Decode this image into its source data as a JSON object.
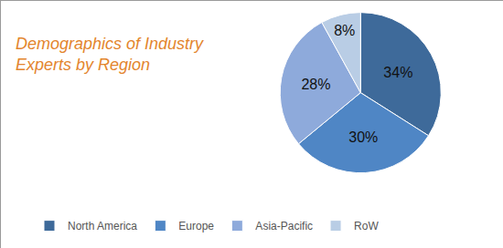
{
  "chart_data": {
    "type": "pie",
    "title": "Demographics of Industry Experts by Region",
    "categories": [
      "North America",
      "Europe",
      "Asia-Pacific",
      "RoW"
    ],
    "values": [
      34,
      30,
      28,
      8
    ],
    "value_labels": [
      "34%",
      "30%",
      "28%",
      "8%"
    ],
    "colors": [
      "#3e6a9a",
      "#4f86c5",
      "#8eaadb",
      "#b9cde5"
    ],
    "data_labels": true,
    "legend": "bottom"
  }
}
